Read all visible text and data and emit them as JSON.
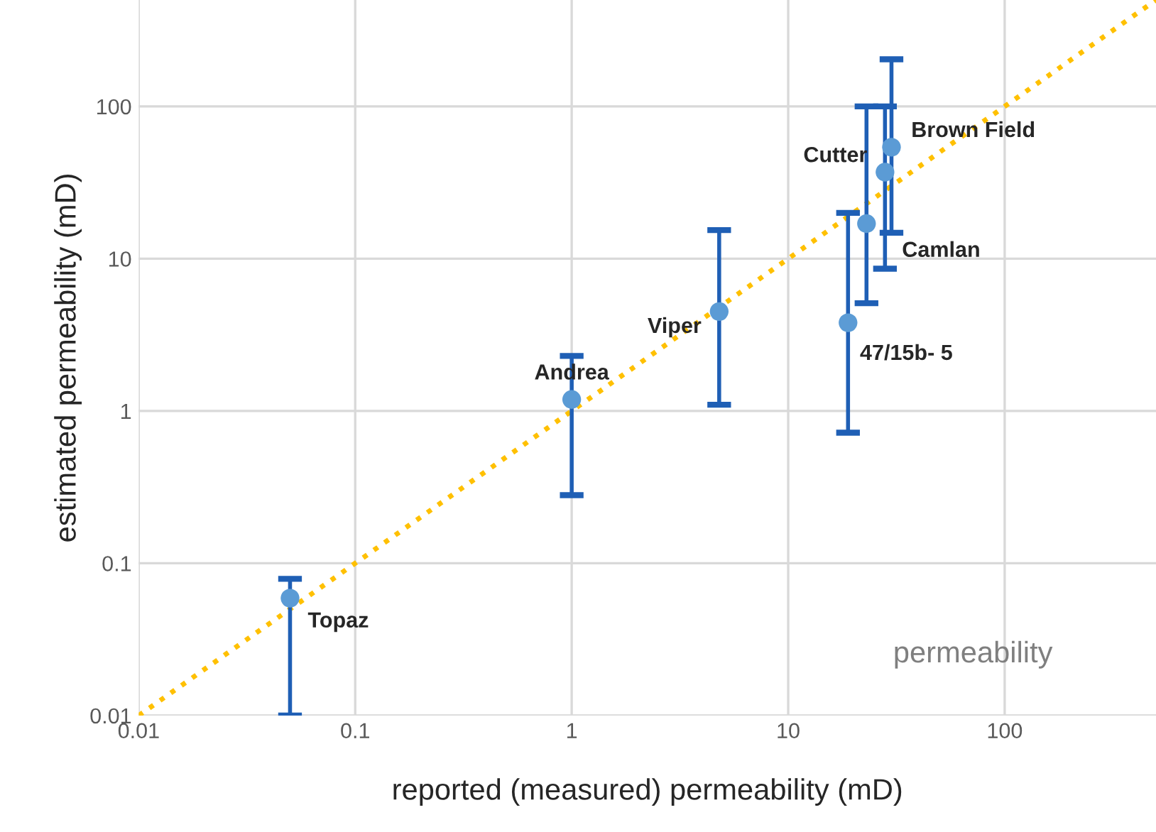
{
  "chart_data": {
    "type": "scatter",
    "xlabel": "reported (measured) permeability (mD)",
    "ylabel": "estimated permeability (mD)",
    "log": "xy",
    "grid": true,
    "legend": false,
    "xlim": [
      0.01,
      500
    ],
    "xticks": [
      0.01,
      0.1,
      1,
      10,
      100
    ],
    "ylim": [
      0.01,
      500
    ],
    "yticks": [
      0.01,
      0.1,
      1,
      10,
      100
    ],
    "series": [
      {
        "color": "#5b9bd5",
        "marker": "circle",
        "x": [
          0.05,
          1,
          4.8,
          18.9,
          23,
          28,
          30
        ],
        "values": [
          0.059,
          1.19,
          4.5,
          3.8,
          17,
          37,
          54
        ],
        "errors": [
          [
            0.01,
            0.079
          ],
          [
            0.28,
            2.3
          ],
          [
            1.1,
            15.4
          ],
          [
            0.72,
            20
          ],
          [
            5.1,
            100
          ],
          [
            8.6,
            100
          ],
          [
            14.8,
            204
          ]
        ],
        "value_labels": [
          "Topaz",
          "Andrea",
          "Viper",
          "47/15b- 5",
          "Camlan",
          "Cutter",
          "Brown Field"
        ]
      },
      {
        "type": "line",
        "color": "#ffc000",
        "line_style": "dotted",
        "x": [
          0.01,
          500
        ],
        "values": [
          0.01,
          500
        ]
      }
    ],
    "annotations": [
      "permeability"
    ]
  }
}
